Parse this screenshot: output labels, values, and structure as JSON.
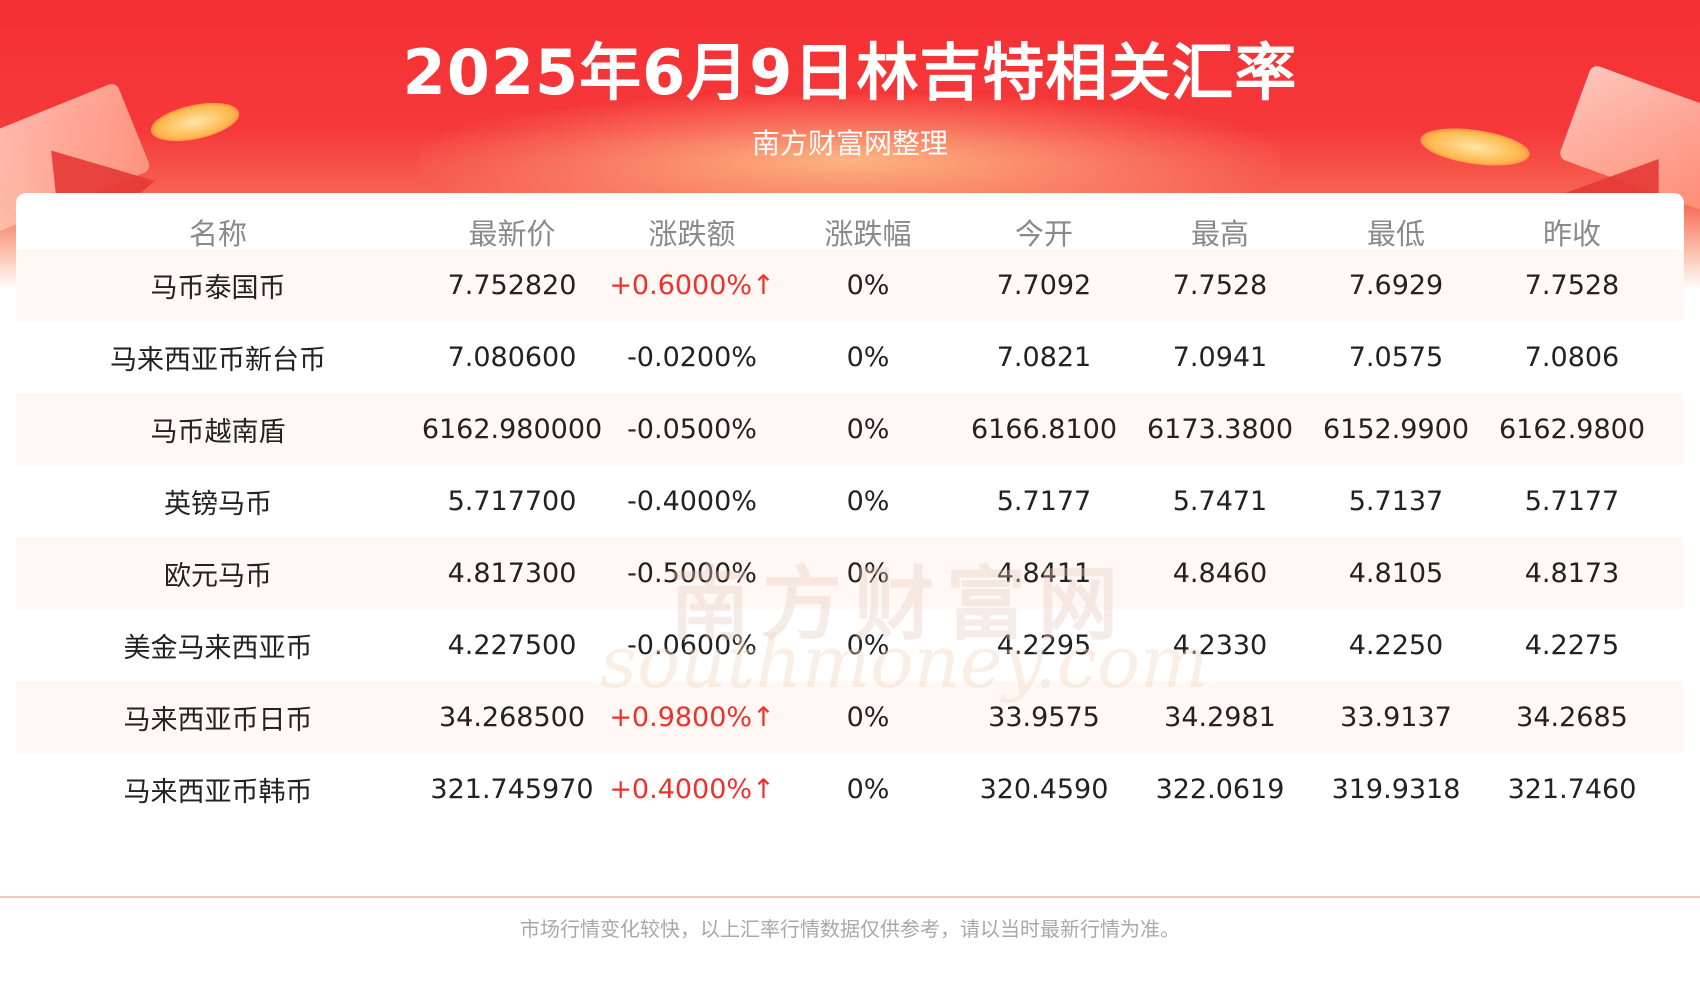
{
  "header": {
    "title": "2025年6月9日林吉特相关汇率",
    "subtitle": "南方财富网整理"
  },
  "colors": {
    "banner": "#f52f33",
    "up": "#f0302a",
    "header_text": "#8a8a8a",
    "row_alt": "#fff8f4"
  },
  "table": {
    "columns": [
      "名称",
      "最新价",
      "涨跌额",
      "涨跌幅",
      "今开",
      "最高",
      "最低",
      "昨收"
    ],
    "rows": [
      {
        "name": "马币泰国币",
        "latest": "7.752820",
        "change": "+0.6000%↑",
        "change_dir": "up",
        "pct": "0%",
        "open": "7.7092",
        "high": "7.7528",
        "low": "7.6929",
        "prev": "7.7528"
      },
      {
        "name": "马来西亚币新台币",
        "latest": "7.080600",
        "change": "-0.0200%",
        "change_dir": "down",
        "pct": "0%",
        "open": "7.0821",
        "high": "7.0941",
        "low": "7.0575",
        "prev": "7.0806"
      },
      {
        "name": "马币越南盾",
        "latest": "6162.980000",
        "change": "-0.0500%",
        "change_dir": "down",
        "pct": "0%",
        "open": "6166.8100",
        "high": "6173.3800",
        "low": "6152.9900",
        "prev": "6162.9800"
      },
      {
        "name": "英镑马币",
        "latest": "5.717700",
        "change": "-0.4000%",
        "change_dir": "down",
        "pct": "0%",
        "open": "5.7177",
        "high": "5.7471",
        "low": "5.7137",
        "prev": "5.7177"
      },
      {
        "name": "欧元马币",
        "latest": "4.817300",
        "change": "-0.5000%",
        "change_dir": "down",
        "pct": "0%",
        "open": "4.8411",
        "high": "4.8460",
        "low": "4.8105",
        "prev": "4.8173"
      },
      {
        "name": "美金马来西亚币",
        "latest": "4.227500",
        "change": "-0.0600%",
        "change_dir": "down",
        "pct": "0%",
        "open": "4.2295",
        "high": "4.2330",
        "low": "4.2250",
        "prev": "4.2275"
      },
      {
        "name": "马来西亚币日币",
        "latest": "34.268500",
        "change": "+0.9800%↑",
        "change_dir": "up",
        "pct": "0%",
        "open": "33.9575",
        "high": "34.2981",
        "low": "33.9137",
        "prev": "34.2685"
      },
      {
        "name": "马来西亚币韩币",
        "latest": "321.745970",
        "change": "+0.4000%↑",
        "change_dir": "up",
        "pct": "0%",
        "open": "320.4590",
        "high": "322.0619",
        "low": "319.9318",
        "prev": "321.7460"
      }
    ]
  },
  "watermark": {
    "cn": "南方财富网",
    "en": "southmoney.com"
  },
  "footer": {
    "note": "市场行情变化较快，以上汇率行情数据仅供参考，请以当时最新行情为准。"
  }
}
